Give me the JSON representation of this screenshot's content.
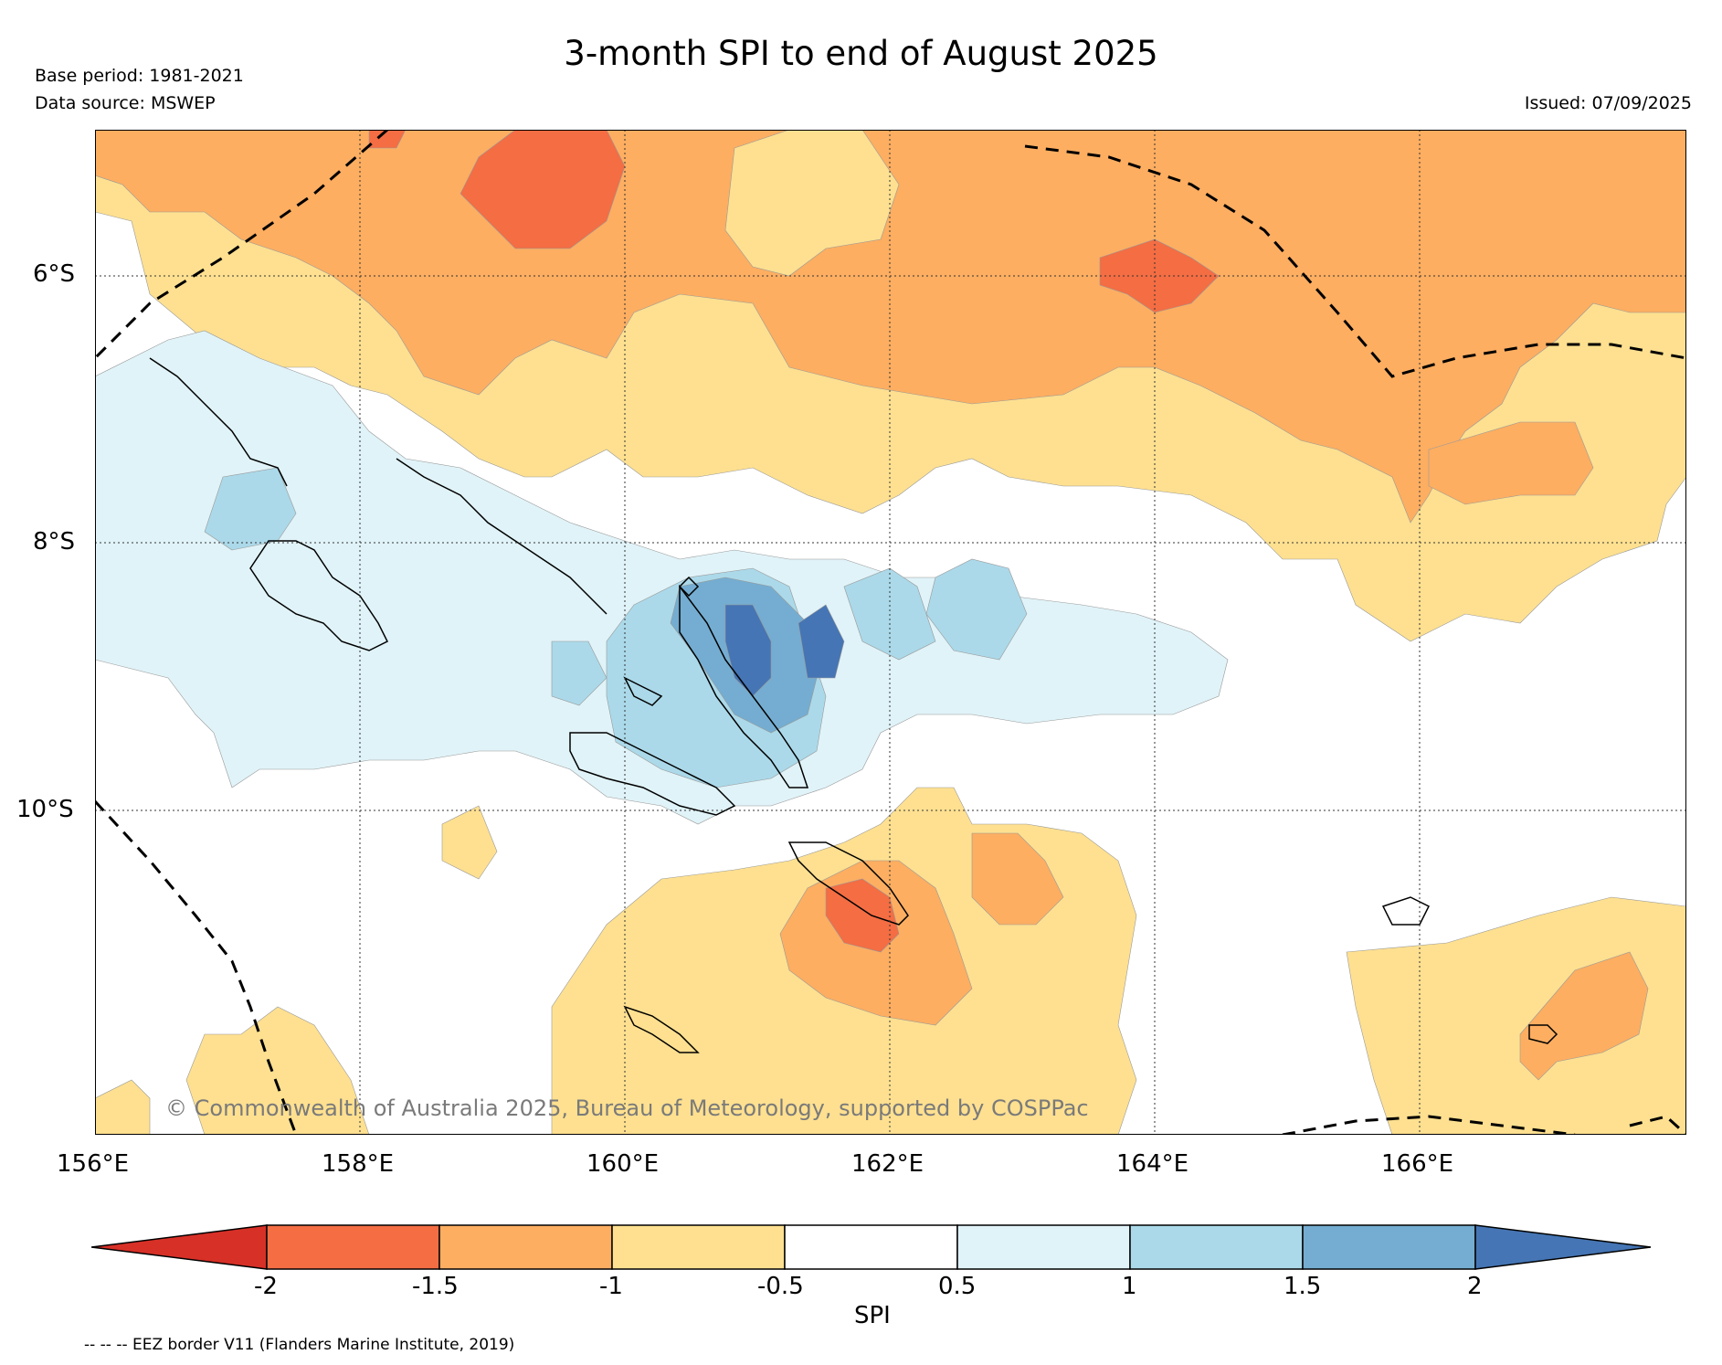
{
  "header": {
    "title": "3-month SPI to end of August 2025",
    "base_period": "Base period: 1981-2021",
    "data_source": "Data source: MSWEP",
    "issued": "Issued: 07/09/2025"
  },
  "map": {
    "latitude_labels": [
      "6°S",
      "8°S",
      "10°S"
    ],
    "longitude_labels": [
      "156°E",
      "158°E",
      "160°E",
      "162°E",
      "164°E",
      "166°E"
    ],
    "copyright": "© Commonwealth of Australia 2025, Bureau of Meteorology, supported by COSPPac"
  },
  "legend": {
    "ticks": [
      "-2",
      "-1.5",
      "-1",
      "-0.5",
      "0.5",
      "1",
      "1.5",
      "2"
    ],
    "title": "SPI",
    "colors": [
      "#d73027",
      "#f46d43",
      "#fdae61",
      "#fee090",
      "#ffffff",
      "#e0f3f8",
      "#abd9e9",
      "#74add1",
      "#4575b4"
    ],
    "eez_note": "-- -- -- EEZ border V11 (Flanders Marine Institute, 2019)"
  }
}
